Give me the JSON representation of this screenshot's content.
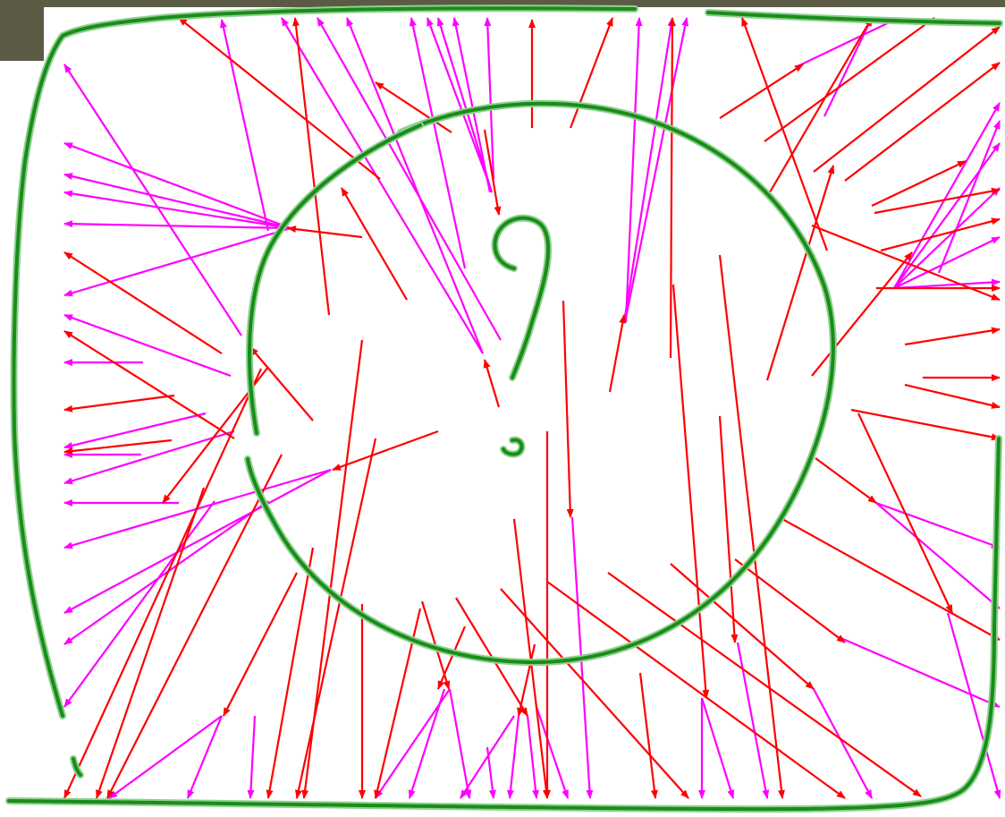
{
  "colors": {
    "background": "#ffffff",
    "frame": "#5b5b45",
    "red_arrow": "#ff0000",
    "magenta_arrow": "#ff00ff",
    "stroke_green": "#1a8c1a",
    "stroke_glow": "#8fd18f"
  },
  "arrows": {
    "red": [
      [
        405,
        265,
        322,
        255
      ],
      [
        425,
        200,
        200,
        20
      ],
      [
        505,
        148,
        420,
        92
      ],
      [
        368,
        352,
        330,
        20
      ],
      [
        455,
        335,
        382,
        210
      ],
      [
        595,
        143,
        595,
        22
      ],
      [
        638,
        143,
        685,
        20
      ],
      [
        750,
        400,
        752,
        20
      ],
      [
        805,
        132,
        898,
        72
      ],
      [
        855,
        158,
        1045,
        20
      ],
      [
        858,
        220,
        975,
        20
      ],
      [
        945,
        202,
        1118,
        70
      ],
      [
        910,
        192,
        1118,
        30
      ],
      [
        975,
        230,
        1080,
        180
      ],
      [
        978,
        238,
        1118,
        212
      ],
      [
        985,
        280,
        1118,
        245
      ],
      [
        908,
        252,
        1118,
        335
      ],
      [
        908,
        420,
        1020,
        282
      ],
      [
        1012,
        385,
        1118,
        368
      ],
      [
        1032,
        422,
        1118,
        422
      ],
      [
        1012,
        430,
        1118,
        455
      ],
      [
        952,
        458,
        1118,
        490
      ],
      [
        960,
        462,
        1065,
        685
      ],
      [
        912,
        512,
        980,
        562
      ],
      [
        875,
        580,
        1118,
        715
      ],
      [
        822,
        625,
        945,
        718
      ],
      [
        750,
        630,
        910,
        770
      ],
      [
        680,
        640,
        1030,
        890
      ],
      [
        612,
        650,
        945,
        892
      ],
      [
        560,
        658,
        770,
        892
      ],
      [
        716,
        752,
        733,
        892
      ],
      [
        753,
        318,
        790,
        780
      ],
      [
        805,
        285,
        875,
        892
      ],
      [
        805,
        465,
        822,
        718
      ],
      [
        630,
        336,
        638,
        578
      ],
      [
        612,
        482,
        612,
        892
      ],
      [
        682,
        438,
        698,
        352
      ],
      [
        510,
        668,
        590,
        800
      ],
      [
        472,
        672,
        502,
        770
      ],
      [
        520,
        700,
        490,
        770
      ],
      [
        542,
        145,
        558,
        240
      ],
      [
        558,
        455,
        542,
        402
      ],
      [
        490,
        482,
        372,
        525
      ],
      [
        405,
        675,
        405,
        892
      ],
      [
        350,
        612,
        300,
        892
      ],
      [
        332,
        640,
        250,
        800
      ],
      [
        420,
        490,
        332,
        892
      ],
      [
        405,
        380,
        340,
        892
      ],
      [
        315,
        508,
        120,
        892
      ],
      [
        292,
        412,
        72,
        892
      ],
      [
        228,
        545,
        108,
        892
      ],
      [
        350,
        470,
        280,
        388
      ],
      [
        300,
        410,
        182,
        562
      ],
      [
        248,
        395,
        72,
        282
      ],
      [
        262,
        490,
        72,
        370
      ],
      [
        192,
        492,
        72,
        505
      ],
      [
        195,
        442,
        72,
        458
      ],
      [
        575,
        580,
        612,
        892
      ],
      [
        470,
        680,
        420,
        892
      ],
      [
        925,
        280,
        830,
        20
      ],
      [
        858,
        425,
        932,
        185
      ],
      [
        980,
        322,
        1118,
        322
      ],
      [
        598,
        720,
        580,
        800
      ]
    ],
    "magenta": [
      [
        325,
        255,
        72,
        160
      ],
      [
        325,
        255,
        72,
        195
      ],
      [
        325,
        255,
        72,
        215
      ],
      [
        325,
        255,
        72,
        250
      ],
      [
        325,
        255,
        72,
        330
      ],
      [
        270,
        375,
        72,
        72
      ],
      [
        300,
        258,
        248,
        22
      ],
      [
        258,
        420,
        72,
        352
      ],
      [
        160,
        405,
        72,
        405
      ],
      [
        230,
        462,
        72,
        500
      ],
      [
        158,
        508,
        72,
        508
      ],
      [
        262,
        482,
        72,
        540
      ],
      [
        200,
        562,
        72,
        562
      ],
      [
        370,
        525,
        72,
        612
      ],
      [
        370,
        525,
        72,
        685
      ],
      [
        300,
        560,
        72,
        720
      ],
      [
        240,
        560,
        72,
        790
      ],
      [
        540,
        395,
        388,
        20
      ],
      [
        540,
        395,
        315,
        20
      ],
      [
        560,
        380,
        355,
        20
      ],
      [
        520,
        300,
        460,
        20
      ],
      [
        545,
        200,
        478,
        20
      ],
      [
        550,
        215,
        490,
        20
      ],
      [
        548,
        215,
        508,
        20
      ],
      [
        552,
        200,
        545,
        20
      ],
      [
        700,
        360,
        715,
        20
      ],
      [
        700,
        355,
        768,
        20
      ],
      [
        698,
        360,
        752,
        20
      ],
      [
        890,
        75,
        1005,
        20
      ],
      [
        922,
        130,
        975,
        20
      ],
      [
        1000,
        322,
        1118,
        115
      ],
      [
        1000,
        322,
        1118,
        160
      ],
      [
        1000,
        322,
        1118,
        210
      ],
      [
        1000,
        322,
        1118,
        265
      ],
      [
        1000,
        322,
        1118,
        315
      ],
      [
        1050,
        305,
        1118,
        135
      ],
      [
        980,
        562,
        1118,
        612
      ],
      [
        980,
        562,
        1118,
        680
      ],
      [
        938,
        712,
        1118,
        790
      ],
      [
        1060,
        685,
        1118,
        892
      ],
      [
        640,
        578,
        660,
        892
      ],
      [
        600,
        790,
        635,
        892
      ],
      [
        575,
        800,
        515,
        892
      ],
      [
        580,
        800,
        570,
        892
      ],
      [
        503,
        770,
        420,
        892
      ],
      [
        503,
        770,
        525,
        892
      ],
      [
        497,
        770,
        458,
        892
      ],
      [
        285,
        800,
        280,
        892
      ],
      [
        248,
        800,
        210,
        892
      ],
      [
        248,
        800,
        122,
        892
      ],
      [
        825,
        718,
        858,
        892
      ],
      [
        785,
        780,
        820,
        892
      ],
      [
        785,
        780,
        785,
        892
      ],
      [
        910,
        770,
        975,
        892
      ],
      [
        590,
        800,
        600,
        892
      ],
      [
        545,
        835,
        552,
        892
      ]
    ]
  }
}
